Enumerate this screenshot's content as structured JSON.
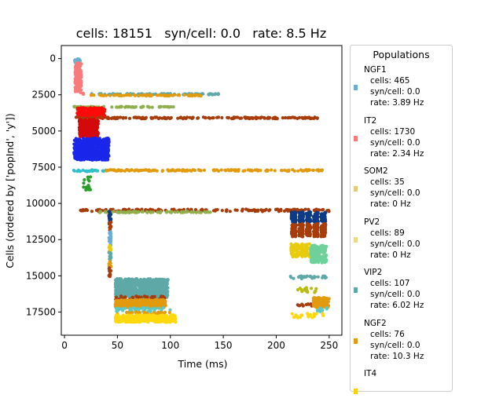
{
  "chart_data": {
    "type": "scatter",
    "title": "cells: 18151   syn/cell: 0.0   rate: 8.5 Hz",
    "xlabel": "Time (ms)",
    "ylabel": "Cells (ordered by ['popInd', 'y'])",
    "xlim": [
      -3,
      262
    ],
    "ylim": [
      19100,
      -900
    ],
    "xticks": [
      0,
      50,
      100,
      150,
      200,
      250
    ],
    "yticks": [
      0,
      2500,
      5000,
      7500,
      10000,
      12500,
      15000,
      17500
    ],
    "xtick_labels": [
      "0",
      "50",
      "100",
      "150",
      "200",
      "250"
    ],
    "ytick_labels": [
      "0",
      "2500",
      "5000",
      "7500",
      "10000",
      "12500",
      "15000",
      "17500"
    ],
    "grid": false,
    "legend_placement": "right-outside",
    "spike_regions": [
      {
        "color": "#6aaed6",
        "x": [
          9,
          15
        ],
        "y": [
          0,
          300
        ],
        "kind": "blob"
      },
      {
        "color": "#f77b7b",
        "x": [
          10,
          16
        ],
        "y": [
          300,
          2300
        ],
        "kind": "blob"
      },
      {
        "color": "#f77b7b",
        "x": [
          15,
          28
        ],
        "y": [
          2300,
          2500
        ],
        "kind": "sparse"
      },
      {
        "color": "#5fa8a8",
        "x": [
          25,
          150
        ],
        "y": [
          2420,
          2500
        ],
        "kind": "band"
      },
      {
        "color": "#e29a0e",
        "x": [
          25,
          130
        ],
        "y": [
          2500,
          2580
        ],
        "kind": "band"
      },
      {
        "color": "#8fb04c",
        "x": [
          8,
          105
        ],
        "y": [
          3310,
          3370
        ],
        "kind": "band"
      },
      {
        "color": "#fd0a0a",
        "x": [
          12,
          38
        ],
        "y": [
          3400,
          4100
        ],
        "kind": "blob"
      },
      {
        "color": "#a73d0b",
        "x": [
          10,
          240
        ],
        "y": [
          4050,
          4150
        ],
        "kind": "band"
      },
      {
        "color": "#d40a0a",
        "x": [
          14,
          32
        ],
        "y": [
          4200,
          5400
        ],
        "kind": "blob"
      },
      {
        "color": "#1a26ea",
        "x": [
          9,
          42
        ],
        "y": [
          5500,
          7000
        ],
        "kind": "blob"
      },
      {
        "color": "#2fc0cc",
        "x": [
          8,
          40
        ],
        "y": [
          7680,
          7800
        ],
        "kind": "band"
      },
      {
        "color": "#e29a0e",
        "x": [
          38,
          245
        ],
        "y": [
          7670,
          7770
        ],
        "kind": "band"
      },
      {
        "color": "#2a9d2a",
        "x": [
          18,
          25
        ],
        "y": [
          8100,
          9300
        ],
        "kind": "sparse"
      },
      {
        "color": "#a73d0b",
        "x": [
          15,
          250
        ],
        "y": [
          10400,
          10560
        ],
        "kind": "band"
      },
      {
        "color": "#8fb04c",
        "x": [
          30,
          140
        ],
        "y": [
          10560,
          10640
        ],
        "kind": "band"
      },
      {
        "color": "#0d3b86",
        "x": [
          42,
          44
        ],
        "y": [
          10500,
          11300
        ],
        "kind": "col"
      },
      {
        "color": "#a73d0b",
        "x": [
          42,
          44
        ],
        "y": [
          11300,
          11900
        ],
        "kind": "col"
      },
      {
        "color": "#6aaed6",
        "x": [
          42,
          44
        ],
        "y": [
          11900,
          12900
        ],
        "kind": "col"
      },
      {
        "color": "#e8cc0c",
        "x": [
          42,
          44
        ],
        "y": [
          12900,
          13400
        ],
        "kind": "col"
      },
      {
        "color": "#5fa8a8",
        "x": [
          42,
          44
        ],
        "y": [
          13400,
          14000
        ],
        "kind": "col"
      },
      {
        "color": "#e29a0e",
        "x": [
          42,
          44
        ],
        "y": [
          14000,
          14400
        ],
        "kind": "col"
      },
      {
        "color": "#a73d0b",
        "x": [
          42,
          44
        ],
        "y": [
          14400,
          15100
        ],
        "kind": "col"
      },
      {
        "color": "#5fa8a8",
        "x": [
          48,
          98
        ],
        "y": [
          15200,
          16500
        ],
        "kind": "blob"
      },
      {
        "color": "#a73d0b",
        "x": [
          48,
          95
        ],
        "y": [
          16400,
          16650
        ],
        "kind": "band"
      },
      {
        "color": "#e29a0e",
        "x": [
          48,
          96
        ],
        "y": [
          16650,
          17200
        ],
        "kind": "blob"
      },
      {
        "color": "#5fc7c4",
        "x": [
          48,
          100
        ],
        "y": [
          17200,
          17500
        ],
        "kind": "band"
      },
      {
        "color": "#e29a0e",
        "x": [
          48,
          100
        ],
        "y": [
          17500,
          17700
        ],
        "kind": "band"
      },
      {
        "color": "#fdd80c",
        "x": [
          48,
          105
        ],
        "y": [
          17700,
          18200
        ],
        "kind": "blob"
      },
      {
        "color": "#0d3b86",
        "x": [
          213,
          248
        ],
        "y": [
          10600,
          11300
        ],
        "kind": "clusters"
      },
      {
        "color": "#a73d0b",
        "x": [
          213,
          248
        ],
        "y": [
          11400,
          12300
        ],
        "kind": "clusters"
      },
      {
        "color": "#e8cc0c",
        "x": [
          213,
          235
        ],
        "y": [
          12800,
          13700
        ],
        "kind": "clusters"
      },
      {
        "color": "#6fd19a",
        "x": [
          232,
          248
        ],
        "y": [
          12900,
          14100
        ],
        "kind": "clusters"
      },
      {
        "color": "#5fa8a8",
        "x": [
          212,
          248
        ],
        "y": [
          15000,
          15200
        ],
        "kind": "band"
      },
      {
        "color": "#b9bc0e",
        "x": [
          220,
          240
        ],
        "y": [
          15800,
          16200
        ],
        "kind": "sparse"
      },
      {
        "color": "#a73d0b",
        "x": [
          220,
          236
        ],
        "y": [
          16900,
          17100
        ],
        "kind": "band"
      },
      {
        "color": "#e29a0e",
        "x": [
          235,
          250
        ],
        "y": [
          16500,
          17200
        ],
        "kind": "blob"
      },
      {
        "color": "#5fc7c4",
        "x": [
          235,
          250
        ],
        "y": [
          17200,
          17500
        ],
        "kind": "band"
      },
      {
        "color": "#fdd80c",
        "x": [
          215,
          245
        ],
        "y": [
          17600,
          17900
        ],
        "kind": "band"
      }
    ],
    "legend": {
      "title": "Populations",
      "entries": [
        {
          "name": "NGF1",
          "color": "#6aaed6",
          "cells": "cells: 465",
          "syn": "syn/cell: 0.0",
          "rate": "rate: 3.89 Hz"
        },
        {
          "name": "IT2",
          "color": "#f77b7b",
          "cells": "cells: 1730",
          "syn": "syn/cell: 0.0",
          "rate": "rate: 2.34 Hz"
        },
        {
          "name": "SOM2",
          "color": "#e5c97a",
          "cells": "cells: 35",
          "syn": "syn/cell: 0.0",
          "rate": "rate: 0 Hz"
        },
        {
          "name": "PV2",
          "color": "#ecd98a",
          "cells": "cells: 89",
          "syn": "syn/cell: 0.0",
          "rate": "rate: 0 Hz"
        },
        {
          "name": "VIP2",
          "color": "#5fa8a8",
          "cells": "cells: 107",
          "syn": "syn/cell: 0.0",
          "rate": "rate: 6.02 Hz"
        },
        {
          "name": "NGF2",
          "color": "#e29a0e",
          "cells": "cells: 76",
          "syn": "syn/cell: 0.0",
          "rate": "rate: 10.3 Hz"
        },
        {
          "name": "IT4",
          "color": "#f7d20c",
          "cells": "",
          "syn": "",
          "rate": ""
        }
      ]
    }
  }
}
